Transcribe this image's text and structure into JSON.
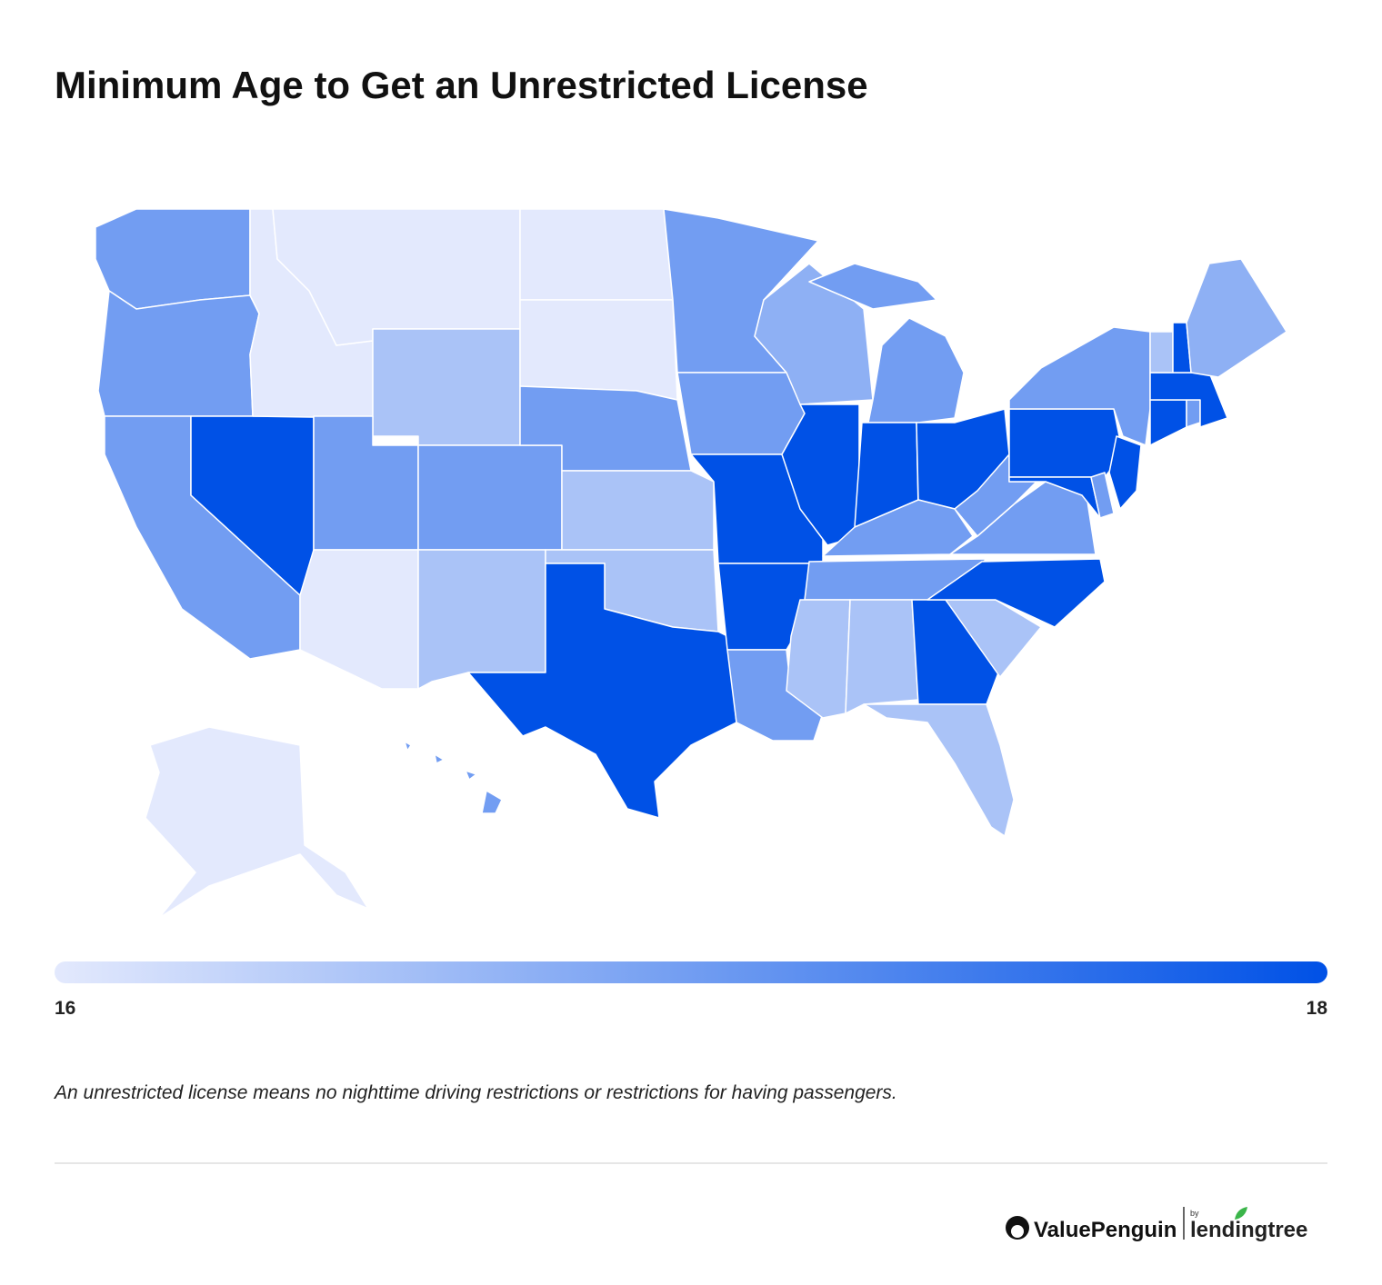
{
  "chart_data": {
    "type": "choropleth",
    "title": "Minimum Age to Get an Unrestricted License",
    "values": [
      17,
      17,
      17,
      18,
      16,
      16,
      16.5,
      17,
      16,
      17,
      16.5,
      16,
      16,
      17,
      16.5,
      16.5,
      18,
      17,
      17,
      18,
      18,
      17,
      16.75,
      18,
      17,
      18,
      18,
      17,
      17,
      16.5,
      16.5,
      18,
      16.5,
      16.5,
      18,
      17,
      17,
      18,
      17,
      18,
      17,
      18,
      18,
      17,
      18,
      16.5,
      18,
      16.75,
      16,
      17
    ],
    "color_scale": [
      "#e3e9fd",
      "#0051e6"
    ],
    "legend_ticks": [
      16,
      18
    ],
    "note": "An unrestricted license means no nighttime driving restrictions or restrictions for having passengers."
  },
  "footer": {
    "brand": "ValuePenguin",
    "by": "by",
    "partner": "lendingtree"
  }
}
